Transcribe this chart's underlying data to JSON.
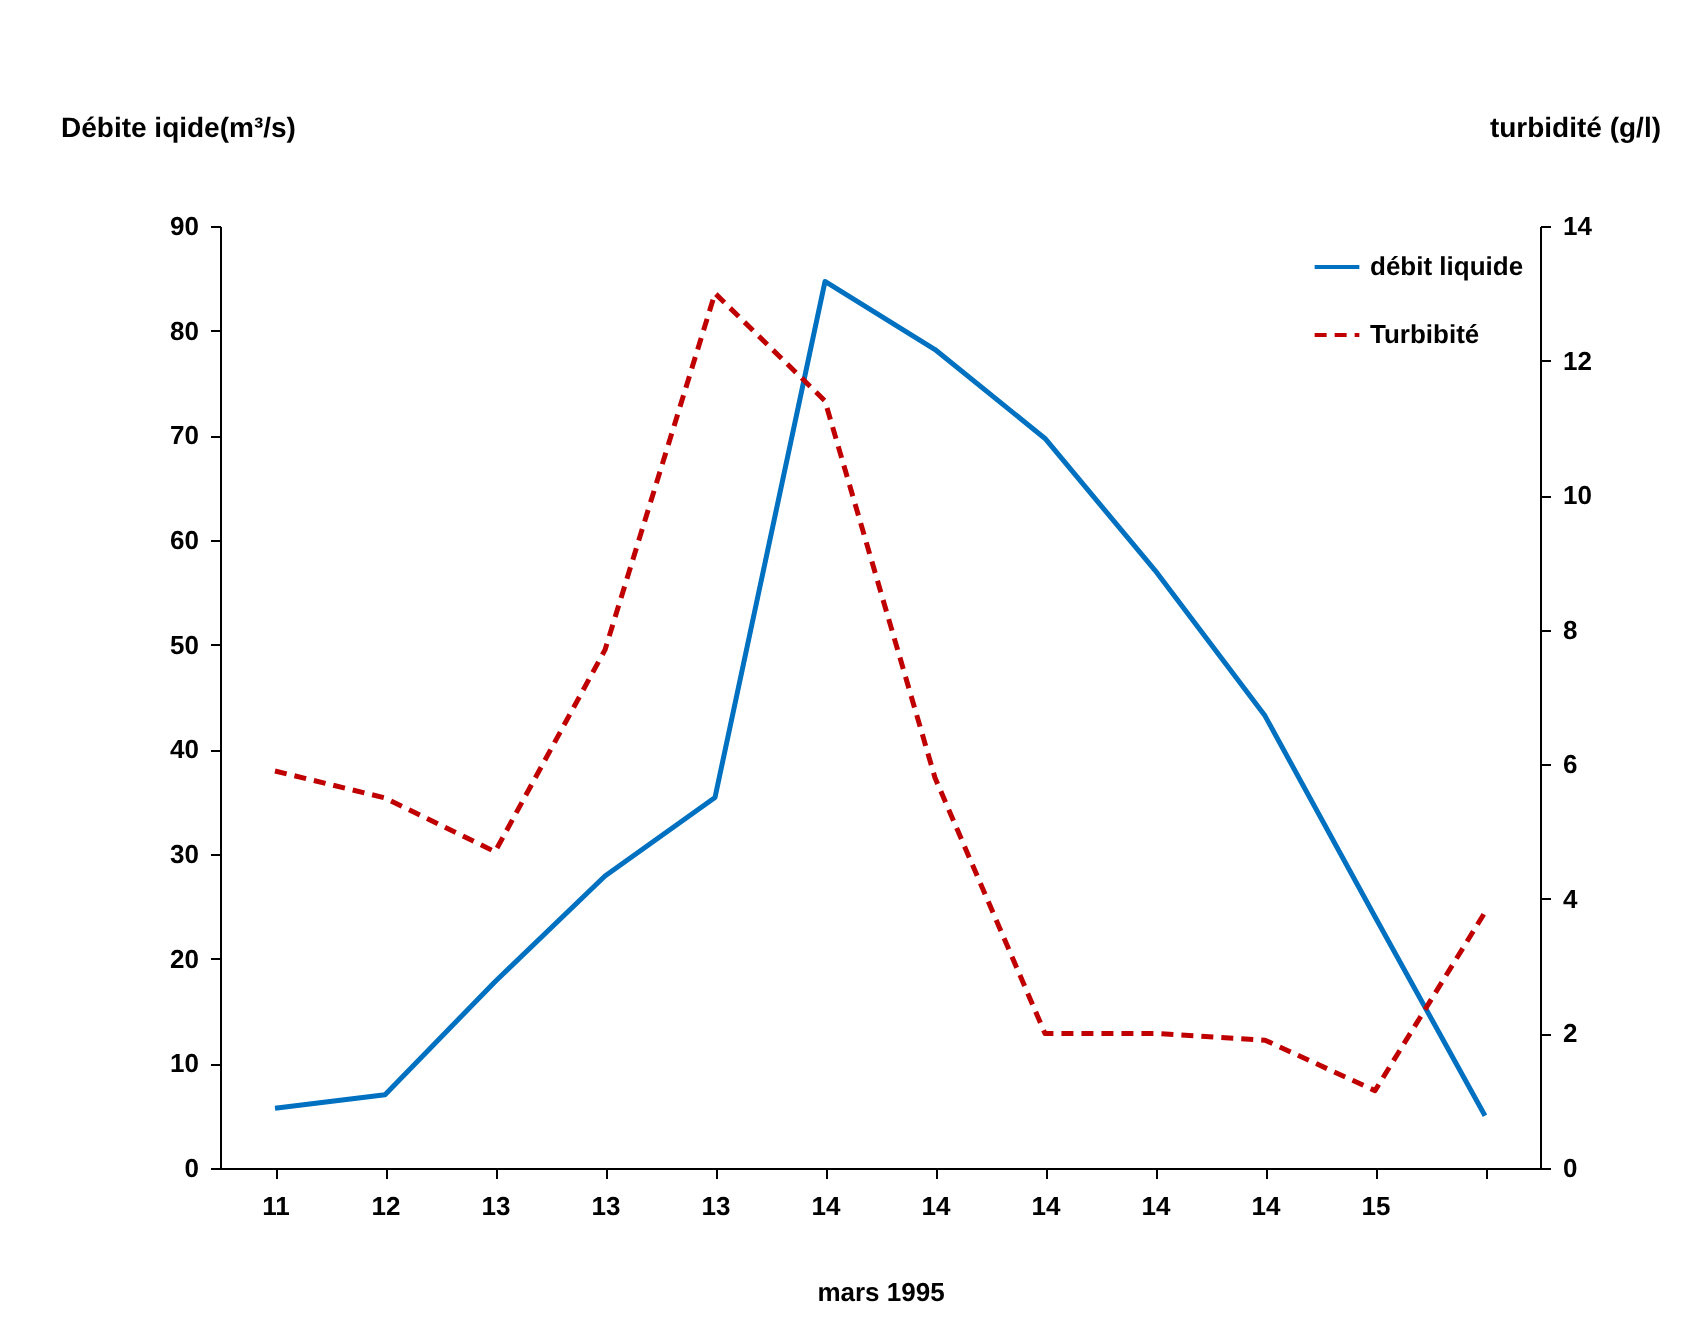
{
  "chart_data": {
    "type": "line",
    "xlabel": "mars 1995",
    "ylabel": "Débite iqide(m³/s)",
    "y2label": "turbidité (g/l)",
    "categories": [
      "11",
      "12",
      "13",
      "13",
      "13",
      "14",
      "14",
      "14",
      "14",
      "14",
      "15",
      null
    ],
    "series": [
      {
        "name": "débit liquide",
        "color": "#0070c0",
        "line_style": "solid",
        "values": [
          5.7,
          7,
          17.8,
          27.9,
          35.4,
          84.7,
          78.2,
          69.7,
          57.1,
          43.2,
          24,
          5
        ]
      },
      {
        "name": "Turbibité",
        "color": "#c00000",
        "line_style": "dashed",
        "axis": "y2",
        "values": [
          5.9,
          5.5,
          4.7,
          7.7,
          13.0,
          11.4,
          5.8,
          2.0,
          2.0,
          1.9,
          1.15,
          3.8
        ]
      }
    ],
    "ylim": [
      0,
      90
    ],
    "yticks": [
      0,
      10,
      20,
      30,
      40,
      50,
      60,
      70,
      80,
      90
    ],
    "y2lim": [
      0,
      14
    ],
    "y2ticks": [
      0,
      2,
      4,
      6,
      8,
      10,
      12,
      14
    ],
    "grid": false,
    "legend": "top right",
    "marker": "none"
  }
}
